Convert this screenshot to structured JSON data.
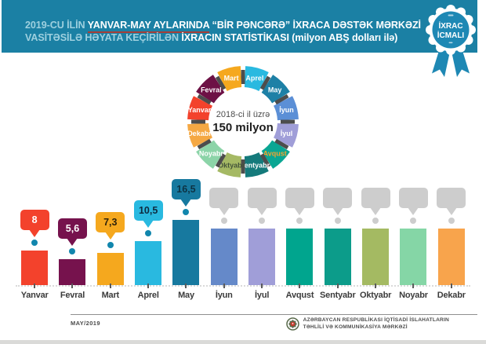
{
  "header": {
    "line1_light": "2019-CU İLİN",
    "line1_underlined": "YANVAR-MAY AYLARINDA",
    "line1_bold": "“BİR PƏNCƏRƏ” İXRACA DƏSTƏK MƏRKƏZİ",
    "line2_light": "VASİTƏSİLƏ HƏYATA KEÇİRİLƏN",
    "line2_bold": "İXRACIN STATİSTİKASI (milyon ABŞ dolları ilə)",
    "bg_color": "#1b80a4",
    "underline_color": "#a63f38"
  },
  "badge": {
    "line1": "İXRAC",
    "line2": "İCMALI",
    "color": "#1e88b4"
  },
  "chart_data": [
    {
      "type": "pie",
      "title": "2018-ci il üzrə",
      "center_label": "150 milyon",
      "note": "12 equal month segments, year 2018 total",
      "tick_color": "#4d4d4d",
      "segments": [
        {
          "label": "Aprel",
          "color": "#29b9e0",
          "label_color": "#ffffff"
        },
        {
          "label": "May",
          "color": "#1d80a6",
          "label_color": "#ffffff"
        },
        {
          "label": "İyun",
          "color": "#5b8fd6",
          "label_color": "#ffffff"
        },
        {
          "label": "İyul",
          "color": "#a09ed8",
          "label_color": "#ffffff"
        },
        {
          "label": "Avqust",
          "color": "#0aa693",
          "label_color": "#f2a331"
        },
        {
          "label": "Sentyabr",
          "color": "#147a7b",
          "label_color": "#ffffff"
        },
        {
          "label": "Oktyabr",
          "color": "#a5b964",
          "label_color": "#44543a"
        },
        {
          "label": "Noyabr",
          "color": "#8cd4a8",
          "label_color": "#ffffff"
        },
        {
          "label": "Dekabr",
          "color": "#f5a843",
          "label_color": "#ffffff"
        },
        {
          "label": "Yanvar",
          "color": "#f3422c",
          "label_color": "#ffffff"
        },
        {
          "label": "Fevral",
          "color": "#6d1145",
          "label_color": "#ffffff"
        },
        {
          "label": "Mart",
          "color": "#f5a81e",
          "label_color": "#ffffff"
        }
      ]
    },
    {
      "type": "bar",
      "title": "İxracın statistikası (milyon ABŞ dolları ilə)",
      "categories": [
        "Yanvar",
        "Fevral",
        "Mart",
        "Aprel",
        "May",
        "İyun",
        "İyul",
        "Avqust",
        "Sentyabr",
        "Oktyabr",
        "Noyabr",
        "Dekabr"
      ],
      "values": [
        8,
        5.6,
        7.3,
        10.5,
        16.5,
        null,
        null,
        null,
        null,
        null,
        null,
        null
      ],
      "value_labels": [
        "8",
        "5,6",
        "7,3",
        "10,5",
        "16,5",
        null,
        null,
        null,
        null,
        null,
        null,
        null
      ],
      "colors": [
        "#f3422c",
        "#76124d",
        "#f5a81e",
        "#29b9e0",
        "#17799f",
        "#6589c9",
        "#a09ed8",
        "#00a58e",
        "#0c9c8a",
        "#a4ba62",
        "#85d6a6",
        "#f8a44c"
      ],
      "bubble_text_colors": [
        "#ffffff",
        "#ffffff",
        "#30230a",
        "#0e2b40",
        "#0d3344",
        null,
        null,
        null,
        null,
        null,
        null,
        null
      ],
      "dot_color": "#1186ad",
      "placeholder_color": "#cdcdcd",
      "grid": false,
      "ylim": [
        0,
        17
      ]
    }
  ],
  "footer": {
    "date": "MAY/2019",
    "org_line1": "AZƏRBAYCAN RESPUBLİKASI İQTİSADİ İSLAHATLARIN",
    "org_line2": "TƏHLİLİ VƏ KOMMUNİKASİYA MƏRKƏZİ"
  }
}
